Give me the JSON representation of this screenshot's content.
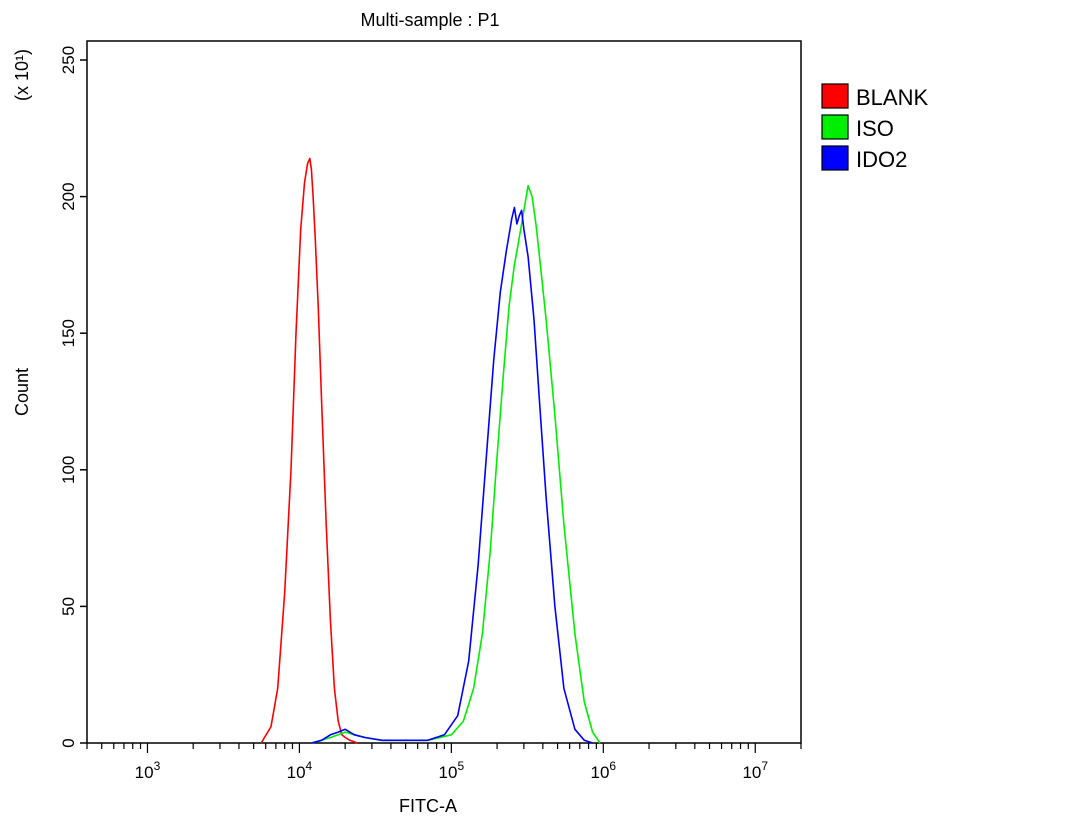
{
  "chart_data": {
    "type": "line",
    "title": "Multi-sample : P1",
    "xlabel": "FITC-A",
    "ylabel": "Count",
    "y_multiplier_label": "(x 10¹)",
    "x_scale": "log",
    "xlim": [
      400,
      20000000
    ],
    "ylim": [
      0,
      258
    ],
    "x_ticks": [
      {
        "base": "10",
        "exp": "3",
        "value": 1000
      },
      {
        "base": "10",
        "exp": "4",
        "value": 10000
      },
      {
        "base": "10",
        "exp": "5",
        "value": 100000
      },
      {
        "base": "10",
        "exp": "6",
        "value": 1000000
      },
      {
        "base": "10",
        "exp": "7",
        "value": 10000000
      }
    ],
    "y_ticks": [
      "0",
      "50",
      "100",
      "150",
      "200",
      "250"
    ],
    "legend_position": "right-top",
    "series": [
      {
        "name": "BLANK",
        "color": "#ff0000",
        "x": [
          5600,
          6500,
          7200,
          8000,
          8800,
          9500,
          10200,
          10800,
          11300,
          11700,
          12000,
          12300,
          12700,
          13300,
          14000,
          15000,
          16000,
          17000,
          18000,
          19000,
          20000,
          21500,
          24000
        ],
        "y": [
          0,
          6,
          20,
          55,
          100,
          150,
          188,
          205,
          212,
          214,
          210,
          200,
          185,
          160,
          125,
          80,
          45,
          20,
          8,
          3,
          2,
          1,
          0
        ]
      },
      {
        "name": "ISO",
        "color": "#00ee00",
        "x": [
          12000,
          14000,
          16000,
          18000,
          20000,
          23000,
          27000,
          35000,
          50000,
          70000,
          100000,
          120000,
          140000,
          160000,
          180000,
          200000,
          220000,
          240000,
          260000,
          280000,
          300000,
          320000,
          340000,
          360000,
          380000,
          420000,
          480000,
          550000,
          650000,
          750000,
          850000,
          950000
        ],
        "y": [
          0,
          1,
          2,
          3,
          4,
          3,
          2,
          1,
          1,
          1,
          3,
          8,
          20,
          40,
          70,
          105,
          135,
          160,
          175,
          185,
          195,
          204,
          200,
          190,
          178,
          155,
          120,
          80,
          40,
          15,
          4,
          0
        ]
      },
      {
        "name": "IDO2",
        "color": "#0000ff",
        "x": [
          12000,
          14000,
          16000,
          18000,
          20000,
          23000,
          27000,
          35000,
          50000,
          70000,
          90000,
          110000,
          130000,
          150000,
          170000,
          190000,
          210000,
          230000,
          250000,
          260000,
          270000,
          280000,
          290000,
          300000,
          320000,
          350000,
          380000,
          420000,
          480000,
          550000,
          650000,
          750000,
          850000
        ],
        "y": [
          0,
          1,
          3,
          4,
          5,
          3,
          2,
          1,
          1,
          1,
          3,
          10,
          30,
          65,
          105,
          140,
          165,
          180,
          192,
          196,
          190,
          193,
          195,
          188,
          178,
          155,
          125,
          90,
          50,
          20,
          5,
          1,
          0
        ]
      }
    ]
  }
}
